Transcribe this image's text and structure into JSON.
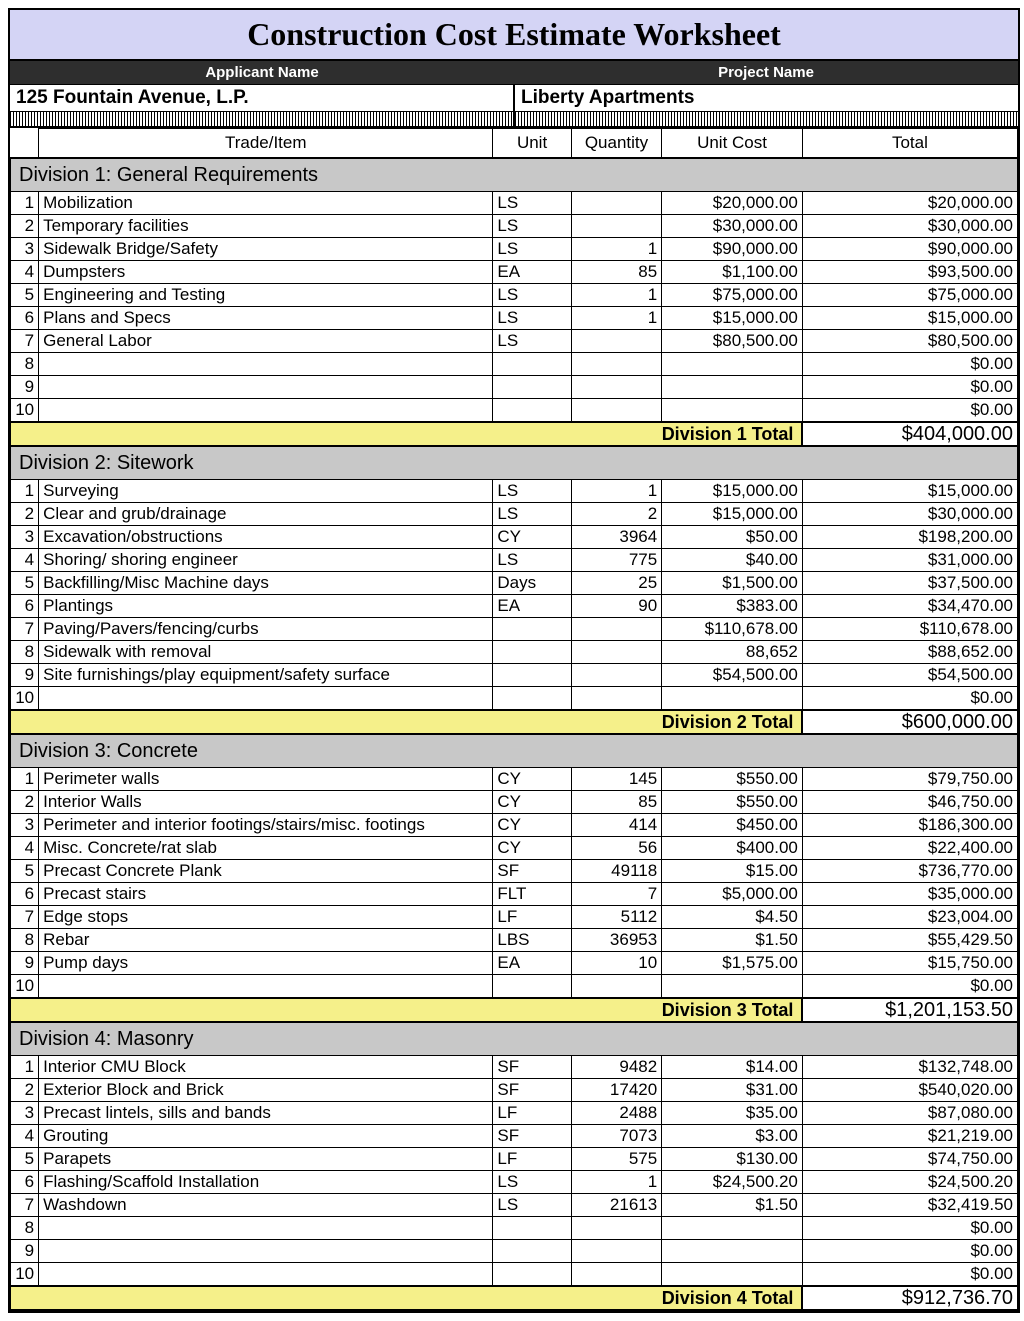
{
  "title": "Construction Cost Estimate Worksheet",
  "header": {
    "applicant_label": "Applicant Name",
    "project_label": "Project  Name",
    "applicant_value": "125 Fountain Avenue, L.P.",
    "project_value": "Liberty Apartments"
  },
  "columns": {
    "trade": "Trade/Item",
    "unit": "Unit",
    "qty": "Quantity",
    "unit_cost": "Unit Cost",
    "total": "Total"
  },
  "colors": {
    "title_bg": "#d4d4f5",
    "header_bg": "#2e2e2e",
    "division_bg": "#c8c8c8",
    "total_bg": "#f5f08a",
    "border": "#000000"
  },
  "divisions": [
    {
      "name": "Division 1: General Requirements",
      "total_label": "Division 1 Total",
      "total": "$404,000.00",
      "rows": [
        {
          "n": "1",
          "trade": "Mobilization",
          "unit": "LS",
          "qty": "",
          "ucost": "$20,000.00",
          "total": "$20,000.00"
        },
        {
          "n": "2",
          "trade": "Temporary facilities",
          "unit": "LS",
          "qty": "",
          "ucost": "$30,000.00",
          "total": "$30,000.00"
        },
        {
          "n": "3",
          "trade": "Sidewalk Bridge/Safety",
          "unit": "LS",
          "qty": "1",
          "ucost": "$90,000.00",
          "total": "$90,000.00"
        },
        {
          "n": "4",
          "trade": "Dumpsters",
          "unit": "EA",
          "qty": "85",
          "ucost": "$1,100.00",
          "total": "$93,500.00"
        },
        {
          "n": "5",
          "trade": "Engineering and Testing",
          "unit": "LS",
          "qty": "1",
          "ucost": "$75,000.00",
          "total": "$75,000.00"
        },
        {
          "n": "6",
          "trade": "Plans and Specs",
          "unit": "LS",
          "qty": "1",
          "ucost": "$15,000.00",
          "total": "$15,000.00"
        },
        {
          "n": "7",
          "trade": "General Labor",
          "unit": "LS",
          "qty": "",
          "ucost": "$80,500.00",
          "total": "$80,500.00"
        },
        {
          "n": "8",
          "trade": "",
          "unit": "",
          "qty": "",
          "ucost": "",
          "total": "$0.00"
        },
        {
          "n": "9",
          "trade": "",
          "unit": "",
          "qty": "",
          "ucost": "",
          "total": "$0.00"
        },
        {
          "n": "10",
          "trade": "",
          "unit": "",
          "qty": "",
          "ucost": "",
          "total": "$0.00"
        }
      ]
    },
    {
      "name": "Division 2: Sitework",
      "total_label": "Division 2 Total",
      "total": "$600,000.00",
      "rows": [
        {
          "n": "1",
          "trade": "Surveying",
          "unit": "LS",
          "qty": "1",
          "ucost": "$15,000.00",
          "total": "$15,000.00"
        },
        {
          "n": "2",
          "trade": "Clear and grub/drainage",
          "unit": "LS",
          "qty": "2",
          "ucost": "$15,000.00",
          "total": "$30,000.00"
        },
        {
          "n": "3",
          "trade": "Excavation/obstructions",
          "unit": "CY",
          "qty": "3964",
          "ucost": "$50.00",
          "total": "$198,200.00"
        },
        {
          "n": "4",
          "trade": "Shoring/ shoring engineer",
          "unit": "LS",
          "qty": "775",
          "ucost": "$40.00",
          "total": "$31,000.00"
        },
        {
          "n": "5",
          "trade": "Backfilling/Misc Machine days",
          "unit": "Days",
          "qty": "25",
          "ucost": "$1,500.00",
          "total": "$37,500.00"
        },
        {
          "n": "6",
          "trade": "Plantings",
          "unit": "EA",
          "qty": "90",
          "ucost": "$383.00",
          "total": "$34,470.00"
        },
        {
          "n": "7",
          "trade": "Paving/Pavers/fencing/curbs",
          "unit": "",
          "qty": "",
          "ucost": "$110,678.00",
          "total": "$110,678.00"
        },
        {
          "n": "8",
          "trade": "Sidewalk with removal",
          "unit": "",
          "qty": "",
          "ucost": "88,652",
          "total": "$88,652.00"
        },
        {
          "n": "9",
          "trade": "Site furnishings/play equipment/safety surface",
          "unit": "",
          "qty": "",
          "ucost": "$54,500.00",
          "total": "$54,500.00"
        },
        {
          "n": "10",
          "trade": "",
          "unit": "",
          "qty": "",
          "ucost": "",
          "total": "$0.00"
        }
      ]
    },
    {
      "name": "Division 3: Concrete",
      "total_label": "Division 3 Total",
      "total": "$1,201,153.50",
      "rows": [
        {
          "n": "1",
          "trade": "Perimeter walls",
          "unit": "CY",
          "qty": "145",
          "ucost": "$550.00",
          "total": "$79,750.00"
        },
        {
          "n": "2",
          "trade": "Interior Walls",
          "unit": "CY",
          "qty": "85",
          "ucost": "$550.00",
          "total": "$46,750.00"
        },
        {
          "n": "3",
          "trade": "Perimeter and interior footings/stairs/misc. footings",
          "unit": "CY",
          "qty": "414",
          "ucost": "$450.00",
          "total": "$186,300.00"
        },
        {
          "n": "4",
          "trade": "Misc. Concrete/rat slab",
          "unit": "CY",
          "qty": "56",
          "ucost": "$400.00",
          "total": "$22,400.00"
        },
        {
          "n": "5",
          "trade": "Precast Concrete Plank",
          "unit": "SF",
          "qty": "49118",
          "ucost": "$15.00",
          "total": "$736,770.00"
        },
        {
          "n": "6",
          "trade": "Precast stairs",
          "unit": "FLT",
          "qty": "7",
          "ucost": "$5,000.00",
          "total": "$35,000.00"
        },
        {
          "n": "7",
          "trade": "Edge stops",
          "unit": "LF",
          "qty": "5112",
          "ucost": "$4.50",
          "total": "$23,004.00"
        },
        {
          "n": "8",
          "trade": "Rebar",
          "unit": "LBS",
          "qty": "36953",
          "ucost": "$1.50",
          "total": "$55,429.50"
        },
        {
          "n": "9",
          "trade": "Pump days",
          "unit": "EA",
          "qty": "10",
          "ucost": "$1,575.00",
          "total": "$15,750.00"
        },
        {
          "n": "10",
          "trade": "",
          "unit": "",
          "qty": "",
          "ucost": "",
          "total": "$0.00"
        }
      ]
    },
    {
      "name": "Division 4: Masonry",
      "total_label": "Division 4 Total",
      "total": "$912,736.70",
      "rows": [
        {
          "n": "1",
          "trade": "Interior CMU Block",
          "unit": "SF",
          "qty": "9482",
          "ucost": "$14.00",
          "total": "$132,748.00"
        },
        {
          "n": "2",
          "trade": "Exterior Block and Brick",
          "unit": "SF",
          "qty": "17420",
          "ucost": "$31.00",
          "total": "$540,020.00"
        },
        {
          "n": "3",
          "trade": "Precast lintels, sills and bands",
          "unit": "LF",
          "qty": "2488",
          "ucost": "$35.00",
          "total": "$87,080.00"
        },
        {
          "n": "4",
          "trade": "Grouting",
          "unit": "SF",
          "qty": "7073",
          "ucost": "$3.00",
          "total": "$21,219.00"
        },
        {
          "n": "5",
          "trade": "Parapets",
          "unit": "LF",
          "qty": "575",
          "ucost": "$130.00",
          "total": "$74,750.00"
        },
        {
          "n": "6",
          "trade": "Flashing/Scaffold Installation",
          "unit": "LS",
          "qty": "1",
          "ucost": "$24,500.20",
          "total": "$24,500.20"
        },
        {
          "n": "7",
          "trade": "Washdown",
          "unit": "LS",
          "qty": "21613",
          "ucost": "$1.50",
          "total": "$32,419.50"
        },
        {
          "n": "8",
          "trade": "",
          "unit": "",
          "qty": "",
          "ucost": "",
          "total": "$0.00"
        },
        {
          "n": "9",
          "trade": "",
          "unit": "",
          "qty": "",
          "ucost": "",
          "total": "$0.00"
        },
        {
          "n": "10",
          "trade": "",
          "unit": "",
          "qty": "",
          "ucost": "",
          "total": "$0.00"
        }
      ]
    }
  ]
}
